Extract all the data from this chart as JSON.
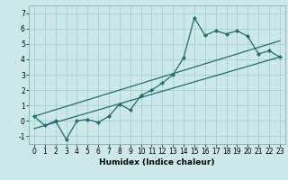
{
  "xlabel": "Humidex (Indice chaleur)",
  "bg_color": "#cce8e8",
  "line_color": "#1a7070",
  "grid_color": "#aacece",
  "xlim": [
    -0.5,
    23.5
  ],
  "ylim": [
    -1.5,
    7.5
  ],
  "yticks": [
    -1,
    0,
    1,
    2,
    3,
    4,
    5,
    6,
    7
  ],
  "xticks": [
    0,
    1,
    2,
    3,
    4,
    5,
    6,
    7,
    8,
    9,
    10,
    11,
    12,
    13,
    14,
    15,
    16,
    17,
    18,
    19,
    20,
    21,
    22,
    23
  ],
  "line1_x": [
    0,
    23
  ],
  "line1_y": [
    -0.5,
    4.15
  ],
  "line2_x": [
    0,
    23
  ],
  "line2_y": [
    0.3,
    5.2
  ],
  "zigzag_x": [
    0,
    1,
    2,
    3,
    4,
    5,
    6,
    7,
    8,
    9,
    10,
    11,
    12,
    13,
    14,
    15,
    16,
    17,
    18,
    19,
    20,
    21,
    22,
    23
  ],
  "zigzag_y": [
    0.3,
    -0.3,
    0.0,
    -1.2,
    0.0,
    0.1,
    -0.1,
    0.3,
    1.1,
    0.7,
    1.65,
    2.0,
    2.45,
    3.0,
    4.1,
    6.7,
    5.55,
    5.85,
    5.65,
    5.85,
    5.5,
    4.35,
    4.55,
    4.15
  ],
  "xlabel_fontsize": 6.5,
  "tick_fontsize": 5.5
}
